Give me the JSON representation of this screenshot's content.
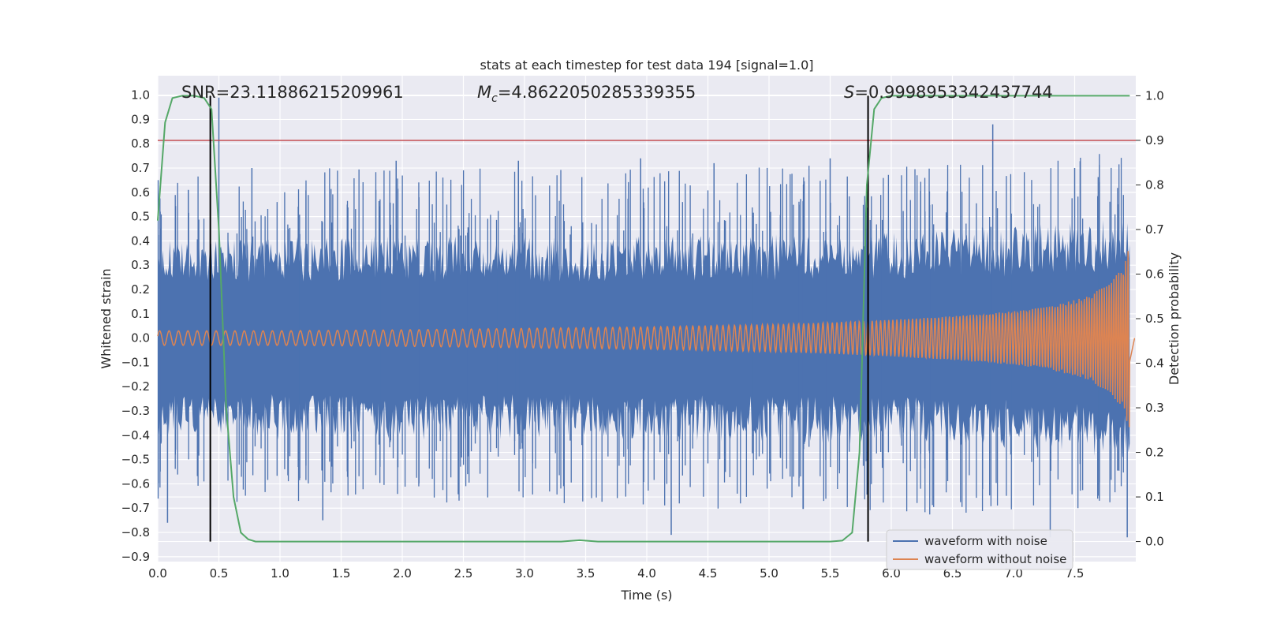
{
  "chart_data": {
    "type": "line",
    "title": "stats at each timestep for test data 194 [signal=1.0]",
    "xlabel": "Time (s)",
    "ylabel": "Whitened strain",
    "y2label": "Detection probability",
    "xlim": [
      0.0,
      8.0
    ],
    "ylim": [
      -0.92,
      1.08
    ],
    "y2lim": [
      -0.045,
      1.045
    ],
    "grid": true,
    "legend_position": "bottom-right",
    "x_ticks": [
      "0.0",
      "0.5",
      "1.0",
      "1.5",
      "2.0",
      "2.5",
      "3.0",
      "3.5",
      "4.0",
      "4.5",
      "5.0",
      "5.5",
      "6.0",
      "6.5",
      "7.0",
      "7.5"
    ],
    "y_ticks": [
      "1.0",
      "0.9",
      "0.8",
      "0.7",
      "0.6",
      "0.5",
      "0.4",
      "0.3",
      "0.2",
      "0.1",
      "0.0",
      "−0.1",
      "−0.2",
      "−0.3",
      "−0.4",
      "−0.5",
      "−0.6",
      "−0.7",
      "−0.8",
      "−0.9"
    ],
    "y2_ticks": [
      "1.0",
      "0.9",
      "0.8",
      "0.7",
      "0.6",
      "0.5",
      "0.4",
      "0.3",
      "0.2",
      "0.1",
      "0.0"
    ],
    "annotations": {
      "snr": "SNR=23.11886215209961",
      "mc_symbol": "M",
      "mc_sub": "c",
      "mc_value": "=4.8622050285339355",
      "s_symbol": "S",
      "s_value": "=0.9998953342437744"
    },
    "noise_envelope": {
      "x": [
        0.0,
        1.0,
        2.0,
        3.0,
        4.0,
        5.0,
        6.0,
        7.0,
        7.95
      ],
      "upper_typical": [
        0.4,
        0.42,
        0.42,
        0.42,
        0.42,
        0.43,
        0.44,
        0.46,
        0.5
      ],
      "lower_typical": [
        -0.4,
        -0.42,
        -0.42,
        -0.42,
        -0.42,
        -0.43,
        -0.44,
        -0.46,
        -0.5
      ],
      "peaks": [
        [
          0.5,
          0.99
        ],
        [
          0.25,
          0.61
        ],
        [
          0.77,
          0.7
        ],
        [
          1.95,
          0.73
        ],
        [
          2.95,
          0.73
        ],
        [
          3.95,
          0.74
        ],
        [
          4.55,
          0.72
        ],
        [
          5.5,
          0.74
        ],
        [
          6.83,
          0.88
        ],
        [
          7.5,
          0.7
        ],
        [
          4.2,
          -0.81
        ],
        [
          0.08,
          -0.76
        ],
        [
          1.35,
          -0.75
        ],
        [
          7.3,
          -0.82
        ],
        [
          7.93,
          -0.82
        ]
      ]
    },
    "series": [
      {
        "name": "waveform with noise",
        "color": "#4c72b0"
      },
      {
        "name": "waveform without noise",
        "color": "#dd8452",
        "x": [
          0.0,
          1.0,
          2.0,
          3.0,
          4.0,
          5.0,
          5.5,
          6.0,
          6.5,
          7.0,
          7.3,
          7.6,
          7.8,
          7.9,
          7.95
        ],
        "amplitude": [
          0.03,
          0.03,
          0.034,
          0.04,
          0.046,
          0.056,
          0.064,
          0.075,
          0.09,
          0.11,
          0.13,
          0.17,
          0.23,
          0.3,
          0.38
        ]
      },
      {
        "name": "detection probability",
        "color": "#55a868",
        "axis": "right",
        "x": [
          0.0,
          0.06,
          0.12,
          0.2,
          0.3,
          0.38,
          0.44,
          0.5,
          0.56,
          0.62,
          0.68,
          0.74,
          0.8,
          1.0,
          2.0,
          3.0,
          3.3,
          3.45,
          3.6,
          4.0,
          5.0,
          5.5,
          5.6,
          5.68,
          5.74,
          5.8,
          5.86,
          5.92,
          6.0,
          7.0,
          7.95
        ],
        "y": [
          0.72,
          0.94,
          0.995,
          1.0,
          1.0,
          0.995,
          0.97,
          0.7,
          0.3,
          0.1,
          0.02,
          0.005,
          0.0,
          0.0,
          0.0,
          0.0,
          0.0,
          0.003,
          0.0,
          0.0,
          0.0,
          0.0,
          0.002,
          0.02,
          0.2,
          0.8,
          0.97,
          0.995,
          1.0,
          1.0,
          1.0
        ]
      }
    ],
    "threshold": {
      "value": 0.9,
      "axis": "right",
      "color": "#c44e52"
    },
    "vlines": [
      0.43,
      5.81
    ]
  }
}
